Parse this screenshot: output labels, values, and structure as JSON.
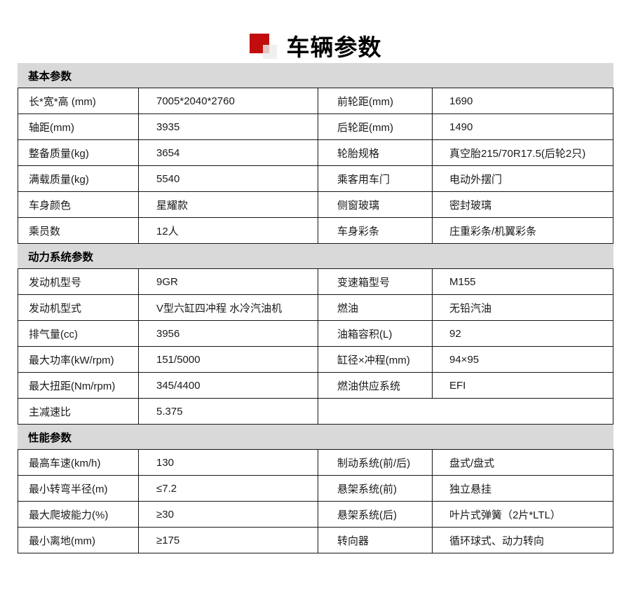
{
  "title": {
    "text": "车辆参数"
  },
  "colors": {
    "accent_red": "#c20d0d",
    "section_header_bg": "#d9d9d9",
    "border": "#161616"
  },
  "sections": [
    {
      "title": "基本参数",
      "rows": [
        [
          "长*宽*高 (mm)",
          "7005*2040*2760",
          "前轮距(mm)",
          "1690"
        ],
        [
          "轴距(mm)",
          "3935",
          "后轮距(mm)",
          "1490"
        ],
        [
          "整备质量(kg)",
          "3654",
          "轮胎规格",
          "真空胎215/70R17.5(后轮2只)"
        ],
        [
          "满载质量(kg)",
          "5540",
          "乘客用车门",
          "电动外摆门"
        ],
        [
          "车身颜色",
          "星耀款",
          "侧窗玻璃",
          "密封玻璃"
        ],
        [
          "乘员数",
          "12人",
          "车身彩条",
          "庄重彩条/机翼彩条"
        ]
      ]
    },
    {
      "title": "动力系统参数",
      "rows": [
        [
          "发动机型号",
          "9GR",
          "变速箱型号",
          "M155"
        ],
        [
          "发动机型式",
          "V型六缸四冲程 水冷汽油机",
          "燃油",
          "无铅汽油"
        ],
        [
          "排气量(cc)",
          "3956",
          "油箱容积(L)",
          "92"
        ],
        [
          "最大功率(kW/rpm)",
          "151/5000",
          "缸径×冲程(mm)",
          "94×95"
        ],
        [
          "最大扭距(Nm/rpm)",
          "345/4400",
          "燃油供应系统",
          "EFI"
        ],
        [
          "主减速比",
          "5.375",
          null,
          null
        ]
      ]
    },
    {
      "title": "性能参数",
      "rows": [
        [
          "最高车速(km/h)",
          "130",
          "制动系统(前/后)",
          "盘式/盘式"
        ],
        [
          "最小转弯半径(m)",
          "≤7.2",
          "悬架系统(前)",
          "独立悬挂"
        ],
        [
          "最大爬坡能力(%)",
          "≥30",
          "悬架系统(后)",
          "叶片式弹簧（2片*LTL）"
        ],
        [
          "最小离地(mm)",
          "≥175",
          "转向器",
          "循环球式、动力转向"
        ]
      ]
    }
  ]
}
